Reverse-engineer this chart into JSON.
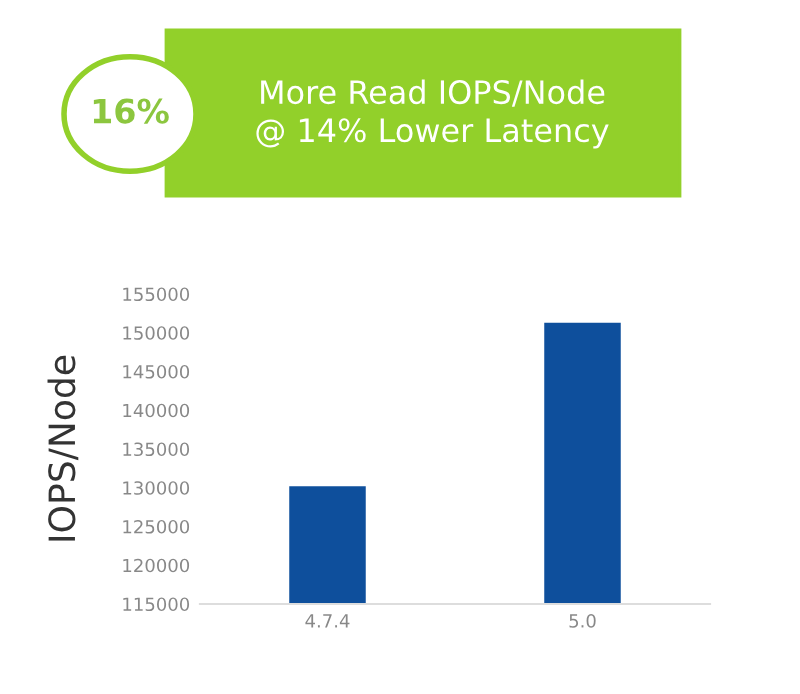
{
  "chart_data": {
    "type": "bar",
    "title": "More Read IOPS/Node\n@ 14% Lower Latency",
    "annotations": [
      "16%"
    ],
    "ylabel": "IOPS/Node",
    "categories": [
      "4.7.4",
      "5.0"
    ],
    "values": [
      130200,
      151300
    ],
    "color": "#0e4f9c",
    "ylim": [
      115000,
      155000
    ],
    "yticks": [
      115000,
      120000,
      125000,
      130000,
      135000,
      140000,
      145000,
      150000,
      155000
    ],
    "grid": false
  }
}
